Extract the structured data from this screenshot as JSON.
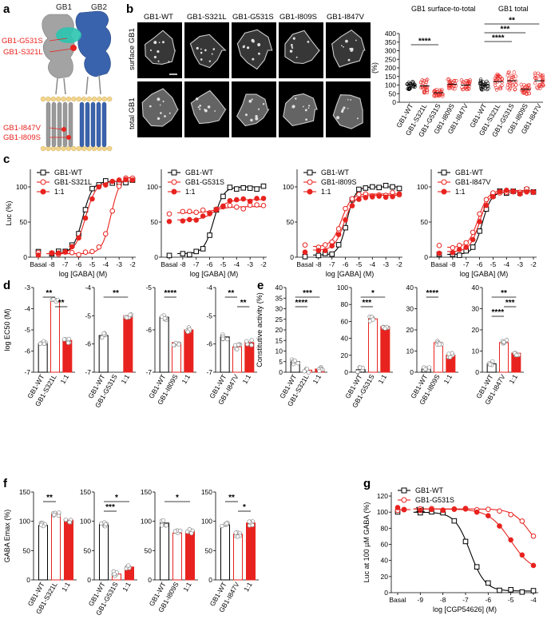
{
  "colors": {
    "wt": "#000000",
    "mut": "#e8231f",
    "mix": "#e8231f",
    "gb1": "#9a9a9a",
    "gb2": "#3a63ad",
    "highlight": "#2bc4b0",
    "lipid": "#f2d48a",
    "cell": "#d9d9d9",
    "micro_bg": "#000000"
  },
  "panel_a": {
    "letter": "a",
    "labels": {
      "gb1": "GB1",
      "gb2": "GB2"
    },
    "mutations": [
      "GB1-G531S",
      "GB1-S321L",
      "GB1-I847V",
      "GB1-I809S"
    ]
  },
  "panel_b": {
    "letter": "b",
    "columns": [
      "GB1-WT",
      "GB1-S321L",
      "GB1-G531S",
      "GB1-I809S",
      "GB1-I847V"
    ],
    "rows": [
      "surface GB1",
      "total GB1"
    ],
    "plot_titles": [
      "GB1 surface-to-total",
      "GB1 total"
    ]
  },
  "chart_data": [
    {
      "id": "b-scatter",
      "type": "scatter",
      "title": "GB1 surface-to-total / GB1 total",
      "ylabel": "(%)",
      "ylim": [
        0,
        400
      ],
      "yticks": [
        0,
        50,
        100,
        150,
        200,
        250,
        300,
        350,
        400
      ],
      "categories": [
        "GB1-WT",
        "GB1-S321L",
        "GB1-G531S",
        "GB1-I809S",
        "GB1-I847V",
        "GB1-WT",
        "GB1-S321L",
        "GB1-G531S",
        "GB1-I809S",
        "GB1-I847V"
      ],
      "means": [
        100,
        95,
        55,
        105,
        100,
        100,
        120,
        125,
        75,
        125
      ],
      "spread": [
        25,
        40,
        20,
        30,
        30,
        35,
        50,
        55,
        30,
        45
      ],
      "significance": [
        {
          "from": 0,
          "to": 2,
          "label": "****"
        },
        {
          "from": 5,
          "to": 9,
          "label": "**"
        },
        {
          "from": 5,
          "to": 8,
          "label": "***"
        },
        {
          "from": 5,
          "to": 7,
          "label": "****"
        }
      ]
    },
    {
      "id": "c1",
      "type": "line",
      "xlabel": "log [GABA] (M)",
      "ylabel": "Luc (%)",
      "x_ticks": [
        "Basal",
        "-8",
        "-7",
        "-6",
        "-5",
        "-4",
        "-3",
        "-2"
      ],
      "ylim": [
        0,
        125
      ],
      "yticks": [
        0,
        50,
        100
      ],
      "series": [
        {
          "name": "GB1-WT",
          "style": "open-square",
          "color": "#000000",
          "bottom": 5,
          "top": 108,
          "ec50": -5.7,
          "hill": 1.2
        },
        {
          "name": "GB1-S321L",
          "style": "open-circle",
          "color": "#e8231f",
          "bottom": 5,
          "top": 115,
          "ec50": -3.6,
          "hill": 1.3
        },
        {
          "name": "1:1",
          "style": "filled-circle",
          "color": "#e8231f",
          "bottom": 5,
          "top": 108,
          "ec50": -5.5,
          "hill": 1.1
        }
      ]
    },
    {
      "id": "c2",
      "type": "line",
      "xlabel": "log [GABA] (M)",
      "ylabel": "",
      "x_ticks": [
        "Basal",
        "-8",
        "-7",
        "-6",
        "-5",
        "-4",
        "-3",
        "-2"
      ],
      "ylim": [
        0,
        125
      ],
      "yticks": [
        0,
        50,
        100
      ],
      "series": [
        {
          "name": "GB1-WT",
          "style": "open-square",
          "color": "#000000",
          "bottom": 5,
          "top": 100,
          "ec50": -5.7,
          "hill": 1.2
        },
        {
          "name": "GB1-G531S",
          "style": "open-circle",
          "color": "#e8231f",
          "bottom": 63,
          "top": 72,
          "ec50": -5.5,
          "hill": 0.8
        },
        {
          "name": "1:1",
          "style": "filled-circle",
          "color": "#e8231f",
          "bottom": 53,
          "top": 82,
          "ec50": -5.5,
          "hill": 0.9
        }
      ]
    },
    {
      "id": "c3",
      "type": "line",
      "xlabel": "log [GABA] (M)",
      "ylabel": "",
      "x_ticks": [
        "Basal",
        "-8",
        "-7",
        "-6",
        "-5",
        "-4",
        "-3",
        "-2"
      ],
      "ylim": [
        0,
        125
      ],
      "yticks": [
        0,
        50,
        100
      ],
      "series": [
        {
          "name": "GB1-WT",
          "style": "open-square",
          "color": "#000000",
          "bottom": 3,
          "top": 100,
          "ec50": -5.9,
          "hill": 1.4
        },
        {
          "name": "GB1-I809S",
          "style": "open-circle",
          "color": "#e8231f",
          "bottom": 15,
          "top": 90,
          "ec50": -6.3,
          "hill": 1.2
        },
        {
          "name": "1:1",
          "style": "filled-circle",
          "color": "#e8231f",
          "bottom": 10,
          "top": 88,
          "ec50": -6.1,
          "hill": 1.2
        }
      ]
    },
    {
      "id": "c4",
      "type": "line",
      "xlabel": "log [GABA] (M)",
      "ylabel": "",
      "x_ticks": [
        "Basal",
        "-8",
        "-7",
        "-6",
        "-5",
        "-4",
        "-3",
        "-2"
      ],
      "ylim": [
        0,
        125
      ],
      "yticks": [
        0,
        50,
        100
      ],
      "series": [
        {
          "name": "GB1-WT",
          "style": "open-square",
          "color": "#000000",
          "bottom": 4,
          "top": 93,
          "ec50": -5.8,
          "hill": 1.3
        },
        {
          "name": "GB1-I847V",
          "style": "open-circle",
          "color": "#e8231f",
          "bottom": 14,
          "top": 95,
          "ec50": -6.1,
          "hill": 1.2
        },
        {
          "name": "1:1",
          "style": "filled-circle",
          "color": "#e8231f",
          "bottom": 8,
          "top": 93,
          "ec50": -6.0,
          "hill": 1.2
        }
      ]
    },
    {
      "id": "d",
      "type": "bar",
      "ylabel": "log EC50 (M)",
      "groups": [
        {
          "ylim": [
            -7,
            -3
          ],
          "yticks": [
            -7,
            -6,
            -5,
            -4,
            -3
          ],
          "categories": [
            "GB1-WT",
            "GB1-S321L",
            "1:1"
          ],
          "values": [
            -5.65,
            -3.65,
            -5.5
          ],
          "sig": [
            {
              "a": 0,
              "b": 1,
              "label": "**"
            },
            {
              "a": 1,
              "b": 2,
              "label": "**"
            }
          ]
        },
        {
          "ylim": [
            -7,
            -4
          ],
          "yticks": [
            -7,
            -6,
            -5,
            -4
          ],
          "categories": [
            "GB1-WT",
            "GB1-G531S",
            "1:1"
          ],
          "values": [
            -5.7,
            null,
            -5.0
          ],
          "sig": [
            {
              "a": 0,
              "b": 2,
              "label": "**"
            }
          ]
        },
        {
          "ylim": [
            -7,
            -5
          ],
          "yticks": [
            -7,
            -6,
            -5
          ],
          "categories": [
            "GB1-WT",
            "GB1-I809S",
            "1:1"
          ],
          "values": [
            -5.7,
            -6.3,
            -6.0
          ],
          "sig": [
            {
              "a": 0,
              "b": 1,
              "label": "****"
            }
          ]
        },
        {
          "ylim": [
            -7,
            -4
          ],
          "yticks": [
            -7,
            -6,
            -5,
            -4
          ],
          "categories": [
            "GB1-WT",
            "GB1-I847V",
            "1:1"
          ],
          "values": [
            -5.75,
            -6.1,
            -5.95
          ],
          "sig": [
            {
              "a": 0,
              "b": 1,
              "label": "**"
            },
            {
              "a": 1,
              "b": 2,
              "label": "**"
            }
          ]
        }
      ]
    },
    {
      "id": "e",
      "type": "bar",
      "ylabel": "Constitutive activity (%)",
      "groups": [
        {
          "ylim": [
            0,
            40
          ],
          "yticks": [
            0,
            5,
            10,
            15,
            20,
            25,
            30,
            35,
            40
          ],
          "categories": [
            "GB1-WT",
            "GB1-S321L",
            "1:1"
          ],
          "values": [
            5,
            1,
            1.5
          ],
          "sig": [
            {
              "a": 0,
              "b": 2,
              "label": "***"
            },
            {
              "a": 0,
              "b": 1,
              "label": "****"
            }
          ]
        },
        {
          "ylim": [
            0,
            100
          ],
          "yticks": [
            0,
            20,
            40,
            60,
            80,
            100
          ],
          "categories": [
            "GB1-WT",
            "GB1-G531S",
            "1:1"
          ],
          "values": [
            3,
            63,
            54
          ],
          "sig": [
            {
              "a": 0,
              "b": 2,
              "label": "*"
            },
            {
              "a": 0,
              "b": 1,
              "label": "***"
            }
          ]
        },
        {
          "ylim": [
            0,
            40
          ],
          "yticks": [
            0,
            10,
            20,
            30,
            40
          ],
          "categories": [
            "GB1-WT",
            "GB1-I809S",
            "1:1"
          ],
          "values": [
            1.5,
            14,
            8
          ],
          "sig": [
            {
              "a": 0,
              "b": 1,
              "label": "****"
            }
          ]
        },
        {
          "ylim": [
            0,
            40
          ],
          "yticks": [
            0,
            10,
            20,
            30,
            40
          ],
          "categories": [
            "GB1-WT",
            "GB1-I847V",
            "1:1"
          ],
          "values": [
            4,
            14,
            9
          ],
          "sig": [
            {
              "a": 0,
              "b": 2,
              "label": "**"
            },
            {
              "a": 1,
              "b": 2,
              "label": "***"
            },
            {
              "a": 0,
              "b": 1,
              "label": "****"
            }
          ]
        }
      ]
    },
    {
      "id": "f",
      "type": "bar",
      "ylabel": "GABA Emax (%)",
      "groups": [
        {
          "ylim": [
            0,
            150
          ],
          "yticks": [
            0,
            50,
            100,
            150
          ],
          "categories": [
            "GB1-WT",
            "GB1-S321L",
            "1:1"
          ],
          "values": [
            93,
            113,
            102
          ],
          "sig": [
            {
              "a": 0,
              "b": 1,
              "label": "**"
            }
          ]
        },
        {
          "ylim": [
            0,
            150
          ],
          "yticks": [
            0,
            50,
            100,
            150
          ],
          "categories": [
            "GB1-WT",
            "GB1-G531S",
            "1:1"
          ],
          "values": [
            95,
            10,
            22
          ],
          "sig": [
            {
              "a": 0,
              "b": 2,
              "label": "*"
            },
            {
              "a": 0,
              "b": 1,
              "label": "***"
            }
          ]
        },
        {
          "ylim": [
            0,
            150
          ],
          "yticks": [
            0,
            50,
            100,
            150
          ],
          "categories": [
            "GB1-WT",
            "GB1-I809S",
            "1:1"
          ],
          "values": [
            97,
            80,
            83
          ],
          "sig": [
            {
              "a": 0,
              "b": 2,
              "label": "*"
            }
          ]
        },
        {
          "ylim": [
            0,
            150
          ],
          "yticks": [
            0,
            50,
            100,
            150
          ],
          "categories": [
            "GB1-WT",
            "GB1-I847V",
            "1:1"
          ],
          "values": [
            94,
            78,
            97
          ],
          "sig": [
            {
              "a": 0,
              "b": 1,
              "label": "**"
            },
            {
              "a": 1,
              "b": 2,
              "label": "*"
            }
          ]
        }
      ]
    },
    {
      "id": "g",
      "type": "line",
      "xlabel": "log [CGP54626] (M)",
      "ylabel": "Luc at 100 µM GABA (%)",
      "x_ticks": [
        "Basal",
        "-9",
        "-8",
        "-7",
        "-6",
        "-5",
        "-4"
      ],
      "ylim": [
        0,
        125
      ],
      "yticks": [
        0,
        20,
        40,
        60,
        80,
        100,
        120
      ],
      "series": [
        {
          "name": "GB1-WT",
          "style": "open-square",
          "color": "#000000",
          "top": 100,
          "bottom": 2,
          "ic50": -6.8,
          "hill": 1.3
        },
        {
          "name": "GB1-G531S",
          "style": "open-circle",
          "color": "#e8231f",
          "top": 104,
          "bottom": 50,
          "ic50": -4.2,
          "hill": 1.2
        },
        {
          "name": "1:1",
          "style": "filled-circle",
          "color": "#e8231f",
          "top": 104,
          "bottom": 25,
          "ic50": -5.0,
          "hill": 0.9
        }
      ]
    }
  ],
  "panel_letters": {
    "c": "c",
    "d": "d",
    "e": "e",
    "f": "f",
    "g": "g"
  }
}
